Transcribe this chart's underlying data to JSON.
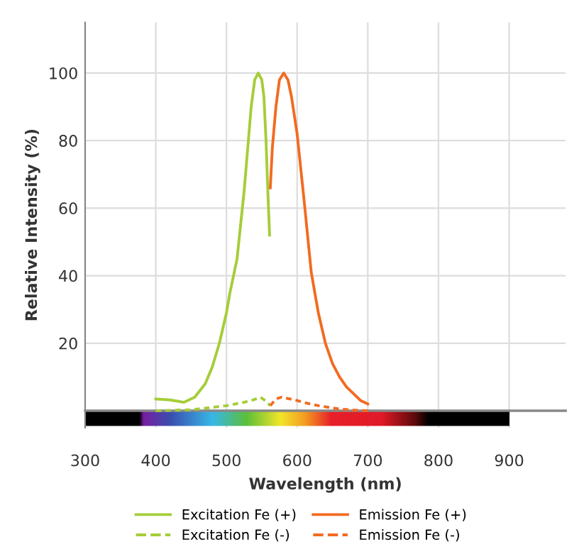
{
  "chart_data": {
    "type": "line",
    "xlabel": "Wavelength (nm)",
    "ylabel": "Relative Intensity (%)",
    "xlim": [
      300,
      980
    ],
    "ylim": [
      -5,
      115
    ],
    "xticks": [
      300,
      400,
      500,
      600,
      700,
      800,
      900
    ],
    "yticks": [
      20,
      40,
      60,
      80,
      100
    ],
    "grid": true,
    "legend": "bottom",
    "marker": "none",
    "series": [
      {
        "name": "Excitation Fe (+)",
        "color": "#a5cd39",
        "line_style": "solid",
        "x": [
          400,
          420,
          440,
          455,
          470,
          480,
          490,
          500,
          505,
          515,
          525,
          535,
          540,
          545,
          550,
          553,
          556,
          558,
          561
        ],
        "values": [
          3.5,
          3.2,
          2.5,
          4,
          8,
          13,
          20,
          29,
          35,
          45,
          65,
          90,
          98,
          100,
          98,
          93,
          80,
          68,
          52
        ]
      },
      {
        "name": "Emission Fe (+)",
        "color": "#f26b21",
        "line_style": "solid",
        "x": [
          562,
          565,
          570,
          575,
          581,
          587,
          592,
          600,
          610,
          620,
          630,
          640,
          650,
          660,
          670,
          680,
          690,
          700
        ],
        "values": [
          66,
          78,
          90,
          98,
          100,
          98,
          93,
          82,
          62,
          41,
          29,
          20,
          14,
          10,
          7,
          5,
          3,
          2
        ]
      },
      {
        "name": "Excitation Fe (-)",
        "color": "#a5cd39",
        "line_style": "dashed",
        "x": [
          400,
          450,
          480,
          500,
          520,
          535,
          548,
          555,
          562
        ],
        "values": [
          0,
          0.3,
          1,
          1.5,
          2.3,
          3,
          4,
          3,
          1.5
        ]
      },
      {
        "name": "Emission Fe (-)",
        "color": "#f26b21",
        "line_style": "dashed",
        "x": [
          562,
          570,
          578,
          590,
          600,
          615,
          630,
          645,
          660,
          680,
          700
        ],
        "values": [
          1.5,
          3.5,
          4,
          3.5,
          3,
          2.2,
          1.5,
          1,
          0.5,
          0.2,
          0
        ]
      }
    ]
  }
}
